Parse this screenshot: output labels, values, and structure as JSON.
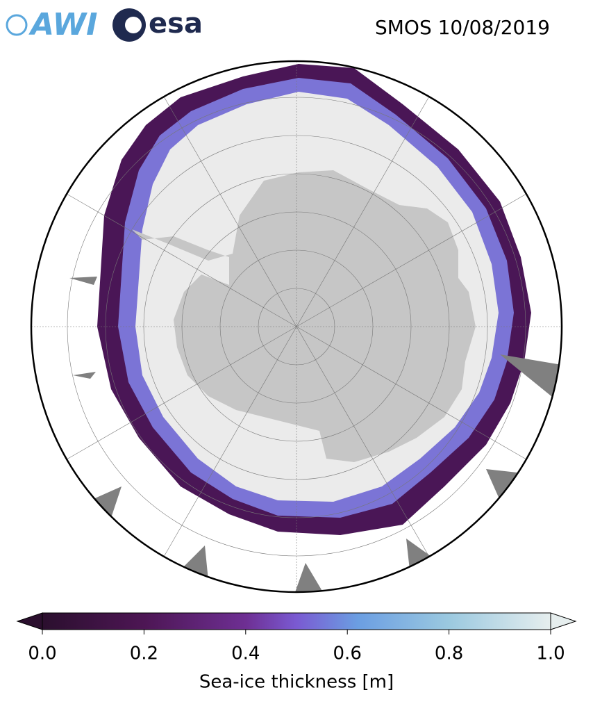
{
  "logos": {
    "awi": "AWI",
    "esa": "esa"
  },
  "title": "SMOS 10/08/2019",
  "colorbar": {
    "label": "Sea-ice thickness [m]",
    "lim": [
      0,
      1
    ],
    "ticks": [
      {
        "value": 0,
        "label": "0.0"
      },
      {
        "value": 0.2,
        "label": "0.2"
      },
      {
        "value": 0.4,
        "label": "0.4"
      },
      {
        "value": 0.6,
        "label": "0.6"
      },
      {
        "value": 0.8,
        "label": "0.8"
      },
      {
        "value": 1,
        "label": "1.0"
      }
    ]
  }
}
